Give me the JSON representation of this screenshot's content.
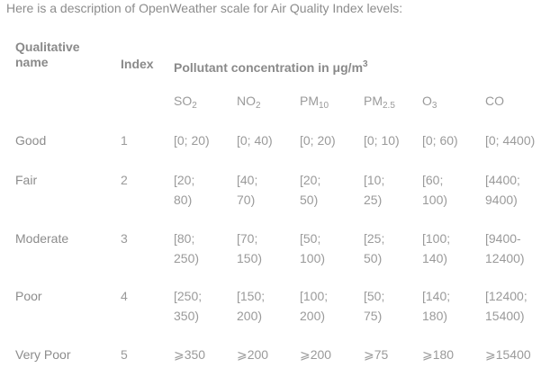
{
  "intro": "Here is a description of OpenWeather scale for Air Quality Index levels:",
  "header": {
    "name_line1": "Qualitative",
    "name_line2": "name",
    "index": "Index",
    "pollutant": "Pollutant concentration in μg/m",
    "pollutant_sup": "3"
  },
  "pollutants": [
    {
      "base": "SO",
      "sub": "2"
    },
    {
      "base": "NO",
      "sub": "2"
    },
    {
      "base": "PM",
      "sub": "10"
    },
    {
      "base": "PM",
      "sub": "2.5"
    },
    {
      "base": "O",
      "sub": "3"
    },
    {
      "base": "CO",
      "sub": ""
    }
  ],
  "rows": [
    {
      "name": "Good",
      "index": "1",
      "values": [
        [
          "[0; 20)"
        ],
        [
          "[0; 40)"
        ],
        [
          "[0; 20)"
        ],
        [
          "[0; 10)"
        ],
        [
          "[0; 60)"
        ],
        [
          "[0; 4400)"
        ]
      ]
    },
    {
      "name": "Fair",
      "index": "2",
      "values": [
        [
          "[20;",
          "80)"
        ],
        [
          "[40;",
          "70)"
        ],
        [
          "[20;",
          "50)"
        ],
        [
          "[10;",
          "25)"
        ],
        [
          "[60;",
          "100)"
        ],
        [
          "[4400;",
          "9400)"
        ]
      ]
    },
    {
      "name": "Moderate",
      "index": "3",
      "values": [
        [
          "[80;",
          "250)"
        ],
        [
          "[70;",
          "150)"
        ],
        [
          "[50;",
          "100)"
        ],
        [
          "[25;",
          "50)"
        ],
        [
          "[100;",
          "140)"
        ],
        [
          "[9400-",
          "12400)"
        ]
      ]
    },
    {
      "name": "Poor",
      "index": "4",
      "values": [
        [
          "[250;",
          "350)"
        ],
        [
          "[150;",
          "200)"
        ],
        [
          "[100;",
          "200)"
        ],
        [
          "[50;",
          "75)"
        ],
        [
          "[140;",
          "180)"
        ],
        [
          "[12400;",
          "15400)"
        ]
      ]
    },
    {
      "name": "Very Poor",
      "index": "5",
      "values": [
        [
          "⩾350"
        ],
        [
          "⩾200"
        ],
        [
          "⩾200"
        ],
        [
          "⩾75"
        ],
        [
          "⩾180"
        ],
        [
          "⩾15400"
        ]
      ]
    }
  ]
}
